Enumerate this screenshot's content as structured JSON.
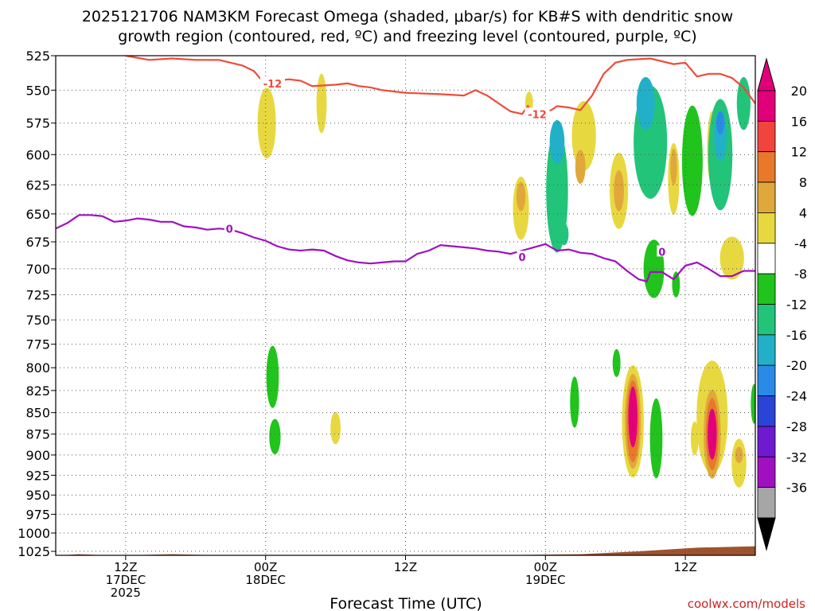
{
  "chart_data": {
    "type": "heatmap",
    "title_line1": "2025121706 NAM3KM Forecast Omega (shaded, μbar/s) for KB#S with dendritic snow",
    "title_line2": "growth region (contoured, red, ºC) and freezing level (contoured, purple, ºC)",
    "xlabel": "Forecast Time (UTC)",
    "credit": "coolwx.com/models",
    "x_range_hours": [
      0,
      60
    ],
    "y_range_mb": [
      525,
      1025
    ],
    "y_ticks": [
      525,
      550,
      575,
      600,
      625,
      650,
      675,
      700,
      725,
      750,
      775,
      800,
      825,
      850,
      875,
      900,
      925,
      950,
      975,
      1000,
      1025
    ],
    "x_ticks": [
      {
        "hour": 6,
        "line1": "12Z",
        "line2": "17DEC",
        "line3": "2025"
      },
      {
        "hour": 18,
        "line1": "00Z",
        "line2": "18DEC",
        "line3": ""
      },
      {
        "hour": 30,
        "line1": "12Z",
        "line2": "",
        "line3": ""
      },
      {
        "hour": 42,
        "line1": "00Z",
        "line2": "19DEC",
        "line3": ""
      },
      {
        "hour": 54,
        "line1": "12Z",
        "line2": "",
        "line3": ""
      }
    ],
    "colorbar": {
      "labels": [
        "20",
        "16",
        "12",
        "8",
        "4",
        "-4",
        "-8",
        "-12",
        "-16",
        "-20",
        "-24",
        "-28",
        "-32",
        "-36"
      ],
      "colors": [
        "#e2007a",
        "#f0443c",
        "#e8782a",
        "#e0a83a",
        "#e8d840",
        "#ffffff",
        "#21c41c",
        "#22c47a",
        "#22b0c8",
        "#2a8ae8",
        "#2a44d8",
        "#6e1ad0",
        "#a010c0",
        "#a6a6a6"
      ],
      "top_arrow": "#e2007a",
      "bottom_arrow": "#000000"
    },
    "contour_labels": {
      "dgz": "-12",
      "freezing": "0"
    },
    "freezing_level": {
      "name": "0ºC freezing level",
      "color": "#a010c0",
      "points": [
        [
          0,
          663
        ],
        [
          1,
          658
        ],
        [
          2,
          651
        ],
        [
          3,
          651
        ],
        [
          4,
          652
        ],
        [
          5,
          657
        ],
        [
          6,
          656
        ],
        [
          7,
          654
        ],
        [
          8,
          655
        ],
        [
          9,
          657
        ],
        [
          10,
          657
        ],
        [
          11,
          661
        ],
        [
          12,
          662
        ],
        [
          13,
          664
        ],
        [
          14,
          663
        ],
        [
          15,
          664
        ],
        [
          16,
          667
        ],
        [
          17,
          671
        ],
        [
          18,
          674
        ],
        [
          19,
          679
        ],
        [
          20,
          682
        ],
        [
          21,
          683
        ],
        [
          22,
          682
        ],
        [
          23,
          683
        ],
        [
          24,
          688
        ],
        [
          25,
          692
        ],
        [
          26,
          694
        ],
        [
          27,
          695
        ],
        [
          28,
          694
        ],
        [
          29,
          693
        ],
        [
          30,
          693
        ],
        [
          31,
          686
        ],
        [
          32,
          683
        ],
        [
          33,
          678
        ],
        [
          34,
          679
        ],
        [
          35,
          680
        ],
        [
          36,
          681
        ],
        [
          37,
          683
        ],
        [
          38,
          684
        ],
        [
          39,
          686
        ],
        [
          40,
          683
        ],
        [
          41,
          680
        ],
        [
          42,
          677
        ],
        [
          42.5,
          680
        ],
        [
          43,
          683
        ],
        [
          44,
          682
        ],
        [
          45,
          685
        ],
        [
          46,
          686
        ],
        [
          47,
          690
        ],
        [
          48,
          693
        ],
        [
          49,
          702
        ],
        [
          50,
          710
        ],
        [
          50.7,
          712
        ],
        [
          51,
          703
        ],
        [
          52,
          703
        ],
        [
          53,
          710
        ],
        [
          54,
          697
        ],
        [
          55,
          694
        ],
        [
          56,
          700
        ],
        [
          57,
          707
        ],
        [
          58,
          707
        ],
        [
          59,
          702
        ],
        [
          60,
          702
        ]
      ]
    },
    "dgz_minus12": {
      "name": "-12ºC contour",
      "color": "#f04a3a",
      "points": [
        [
          6,
          525
        ],
        [
          8,
          528
        ],
        [
          10,
          527
        ],
        [
          12,
          528
        ],
        [
          14,
          528
        ],
        [
          16,
          532
        ],
        [
          17,
          536
        ],
        [
          18,
          546
        ],
        [
          19,
          543
        ],
        [
          20,
          542
        ],
        [
          21,
          543
        ],
        [
          22,
          547
        ],
        [
          24,
          546
        ],
        [
          25,
          545
        ],
        [
          26,
          547
        ],
        [
          27,
          548
        ],
        [
          28,
          550
        ],
        [
          30,
          552
        ],
        [
          33,
          553
        ],
        [
          35,
          554
        ],
        [
          36,
          550
        ],
        [
          37,
          554
        ],
        [
          38,
          560
        ],
        [
          39,
          566
        ],
        [
          40,
          568
        ],
        [
          40.5,
          562
        ],
        [
          41,
          570
        ],
        [
          42,
          566
        ],
        [
          42.5,
          565
        ],
        [
          43,
          562
        ],
        [
          44,
          563
        ],
        [
          45,
          565
        ],
        [
          46,
          554
        ],
        [
          47,
          538
        ],
        [
          48,
          530
        ],
        [
          49,
          528
        ],
        [
          51,
          527
        ],
        [
          53,
          531
        ],
        [
          54,
          530
        ],
        [
          55,
          540
        ],
        [
          56,
          538
        ],
        [
          57,
          538
        ],
        [
          58,
          541
        ],
        [
          59,
          548
        ],
        [
          60,
          560
        ]
      ]
    },
    "surface": {
      "name": "terrain below ground",
      "color": "#a0522d",
      "points": [
        [
          0,
          1031
        ],
        [
          2,
          1029
        ],
        [
          5,
          1031
        ],
        [
          10,
          1029
        ],
        [
          15,
          1031
        ],
        [
          20,
          1031
        ],
        [
          25,
          1031
        ],
        [
          30,
          1031
        ],
        [
          32,
          1034
        ],
        [
          35,
          1031
        ],
        [
          40,
          1030
        ],
        [
          45,
          1029
        ],
        [
          50,
          1025
        ],
        [
          55,
          1020
        ],
        [
          60,
          1018
        ]
      ]
    },
    "omega_cells": [
      {
        "t": 18.1,
        "p": 575,
        "w": 1.3,
        "h": 55,
        "v": 5
      },
      {
        "t": 22.8,
        "p": 560,
        "w": 0.6,
        "h": 45,
        "v": 5
      },
      {
        "t": 18.6,
        "p": 810,
        "w": 0.8,
        "h": 68,
        "v": -6
      },
      {
        "t": 18.8,
        "p": 878,
        "w": 0.7,
        "h": 42,
        "v": -6
      },
      {
        "t": 24.0,
        "p": 868,
        "w": 0.6,
        "h": 38,
        "v": 5
      },
      {
        "t": 39.9,
        "p": 645,
        "w": 1.1,
        "h": 55,
        "v": 6
      },
      {
        "t": 39.9,
        "p": 635,
        "w": 0.5,
        "h": 25,
        "v": 10
      },
      {
        "t": 40.6,
        "p": 560,
        "w": 0.4,
        "h": 18,
        "v": 5
      },
      {
        "t": 43.0,
        "p": 630,
        "w": 1.6,
        "h": 105,
        "v": -8
      },
      {
        "t": 43.0,
        "p": 590,
        "w": 1.0,
        "h": 35,
        "v": -13
      },
      {
        "t": 43.6,
        "p": 668,
        "w": 0.5,
        "h": 20,
        "v": -10
      },
      {
        "t": 45.3,
        "p": 585,
        "w": 1.8,
        "h": 55,
        "v": 5
      },
      {
        "t": 45.0,
        "p": 610,
        "w": 0.6,
        "h": 28,
        "v": 9
      },
      {
        "t": 44.5,
        "p": 838,
        "w": 0.5,
        "h": 58,
        "v": -6
      },
      {
        "t": 48.3,
        "p": 630,
        "w": 1.3,
        "h": 65,
        "v": 6
      },
      {
        "t": 48.3,
        "p": 630,
        "w": 0.6,
        "h": 35,
        "v": 10
      },
      {
        "t": 48.1,
        "p": 795,
        "w": 0.4,
        "h": 30,
        "v": -6
      },
      {
        "t": 51.0,
        "p": 590,
        "w": 2.6,
        "h": 90,
        "v": -8
      },
      {
        "t": 50.6,
        "p": 560,
        "w": 1.3,
        "h": 40,
        "v": -13
      },
      {
        "t": 51.3,
        "p": 610,
        "w": 0.7,
        "h": 40,
        "v": -10
      },
      {
        "t": 51.3,
        "p": 700,
        "w": 1.5,
        "h": 55,
        "v": -6
      },
      {
        "t": 53.0,
        "p": 620,
        "w": 0.7,
        "h": 60,
        "v": 6
      },
      {
        "t": 53.0,
        "p": 610,
        "w": 0.3,
        "h": 30,
        "v": 10
      },
      {
        "t": 54.6,
        "p": 605,
        "w": 1.5,
        "h": 90,
        "v": -6
      },
      {
        "t": 56.3,
        "p": 595,
        "w": 0.6,
        "h": 60,
        "v": 5
      },
      {
        "t": 57.0,
        "p": 600,
        "w": 1.8,
        "h": 90,
        "v": -8
      },
      {
        "t": 57.0,
        "p": 585,
        "w": 0.8,
        "h": 40,
        "v": -13
      },
      {
        "t": 57.0,
        "p": 575,
        "w": 0.4,
        "h": 18,
        "v": -17
      },
      {
        "t": 59.0,
        "p": 560,
        "w": 0.9,
        "h": 40,
        "v": -9
      },
      {
        "t": 49.5,
        "p": 860,
        "w": 1.6,
        "h": 130,
        "v": 6
      },
      {
        "t": 49.5,
        "p": 860,
        "w": 1.1,
        "h": 110,
        "v": 10
      },
      {
        "t": 49.5,
        "p": 860,
        "w": 0.8,
        "h": 95,
        "v": 15
      },
      {
        "t": 49.5,
        "p": 855,
        "w": 0.5,
        "h": 70,
        "v": 22
      },
      {
        "t": 51.5,
        "p": 880,
        "w": 0.8,
        "h": 95,
        "v": -7
      },
      {
        "t": 53.2,
        "p": 715,
        "w": 0.4,
        "h": 25,
        "v": -6
      },
      {
        "t": 54.8,
        "p": 880,
        "w": 0.4,
        "h": 40,
        "v": 5
      },
      {
        "t": 56.3,
        "p": 855,
        "w": 2.4,
        "h": 130,
        "v": 6
      },
      {
        "t": 56.3,
        "p": 875,
        "w": 1.2,
        "h": 105,
        "v": 10
      },
      {
        "t": 56.3,
        "p": 875,
        "w": 0.8,
        "h": 85,
        "v": 15
      },
      {
        "t": 56.3,
        "p": 875,
        "w": 0.5,
        "h": 60,
        "v": 22
      },
      {
        "t": 58.0,
        "p": 690,
        "w": 1.8,
        "h": 40,
        "v": 5
      },
      {
        "t": 58.6,
        "p": 910,
        "w": 1.0,
        "h": 60,
        "v": 5
      },
      {
        "t": 58.6,
        "p": 900,
        "w": 0.4,
        "h": 20,
        "v": 9
      },
      {
        "t": 59.9,
        "p": 840,
        "w": 0.3,
        "h": 45,
        "v": -6
      }
    ]
  }
}
